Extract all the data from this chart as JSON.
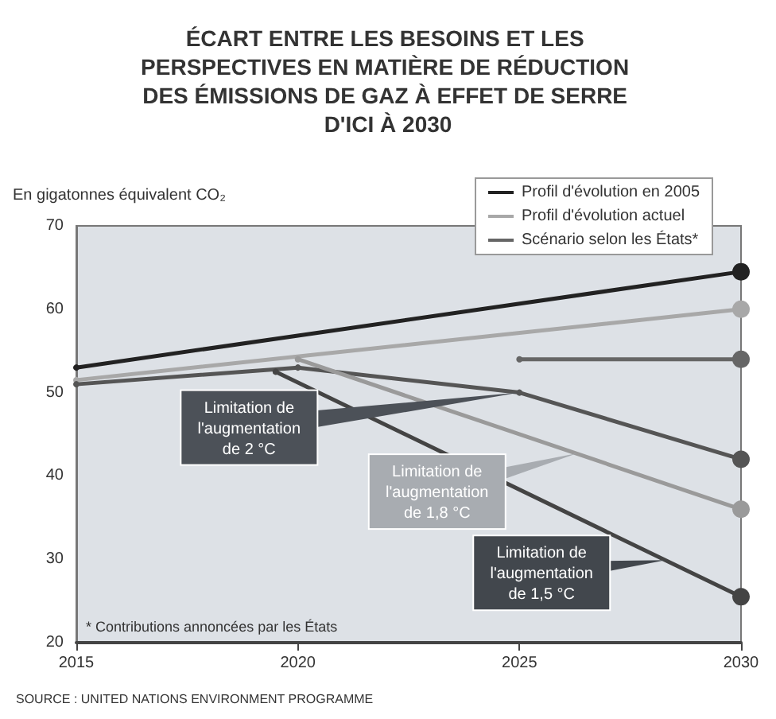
{
  "chart_data": {
    "type": "line",
    "title": "ÉCART ENTRE LES BESOINS ET LES PERSPECTIVES EN MATIÈRE DE RÉDUCTION DES ÉMISSIONS DE GAZ À EFFET DE SERRE D'ICI À 2030",
    "ylabel": "En gigatonnes équivalent CO₂",
    "series": [
      {
        "name": "Profil d'évolution en 2005",
        "color": "#222222",
        "x": [
          2015,
          2030
        ],
        "values": [
          53,
          64.5
        ]
      },
      {
        "name": "Profil d'évolution actuel",
        "color": "#a8a8a8",
        "x": [
          2015,
          2030
        ],
        "values": [
          51.5,
          60
        ]
      },
      {
        "name": "Scénario selon les États*",
        "color": "#666666",
        "x": [
          2025,
          2030
        ],
        "values": [
          54,
          54
        ]
      },
      {
        "color": "#555555",
        "x": [
          2015,
          2020,
          2025,
          2030
        ],
        "values": [
          51,
          53,
          50,
          42
        ]
      },
      {
        "color": "#9a9a9a",
        "x": [
          2020,
          2030
        ],
        "values": [
          54,
          36
        ]
      },
      {
        "color": "#444444",
        "x": [
          2019.5,
          2030
        ],
        "values": [
          52.5,
          25.5
        ]
      }
    ],
    "xlim": [
      2015,
      2030
    ],
    "xticks": [
      2015,
      2020,
      2025,
      2030
    ],
    "ylim": [
      20,
      70
    ],
    "yticks": [
      20,
      30,
      40,
      50,
      60,
      70
    ],
    "grid": false,
    "legend": "top right",
    "marker": "circle",
    "line_style": "solid",
    "annotations": [
      {
        "text": "Limitation de l'augmentation de 2 °C",
        "x": 2025,
        "y": 50
      },
      {
        "text": "Limitation de l'augmentation de 1,8 °C",
        "x": 2026.3,
        "y": 42.7
      },
      {
        "text": "Limitation de l'augmentation de 1,5 °C",
        "x": 2028.3,
        "y": 29.9
      },
      "* Contributions annoncées par les États",
      "SOURCE : UNITED NATIONS ENVIRONMENT PROGRAMME"
    ]
  }
}
